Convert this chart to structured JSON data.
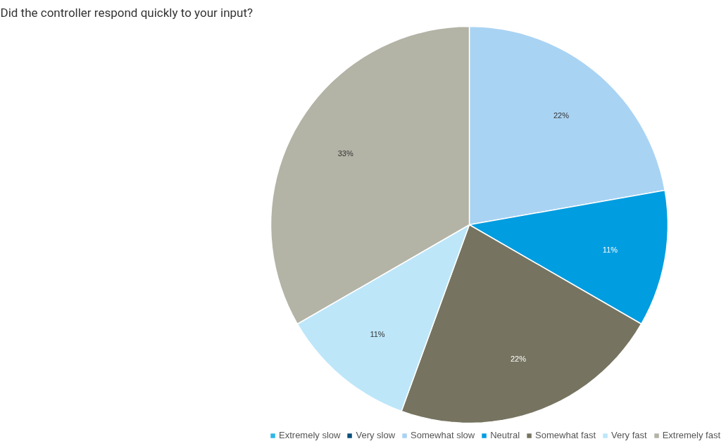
{
  "chart_data": {
    "type": "pie",
    "title": "Did the controller respond quickly to your input?",
    "categories": [
      "Extremely slow",
      "Very slow",
      "Somewhat slow",
      "Neutral",
      "Somewhat fast",
      "Very fast",
      "Extremely fast"
    ],
    "values": [
      0,
      0,
      22,
      11,
      22,
      11,
      33
    ],
    "colors": [
      "#2fb6e8",
      "#0b4f7c",
      "#a9d3f3",
      "#009de0",
      "#767460",
      "#bde6f9",
      "#b3b3a6"
    ],
    "value_labels": [
      null,
      null,
      "22%",
      "11%",
      "22%",
      "11%",
      "33%"
    ],
    "legend": "bottom right"
  }
}
